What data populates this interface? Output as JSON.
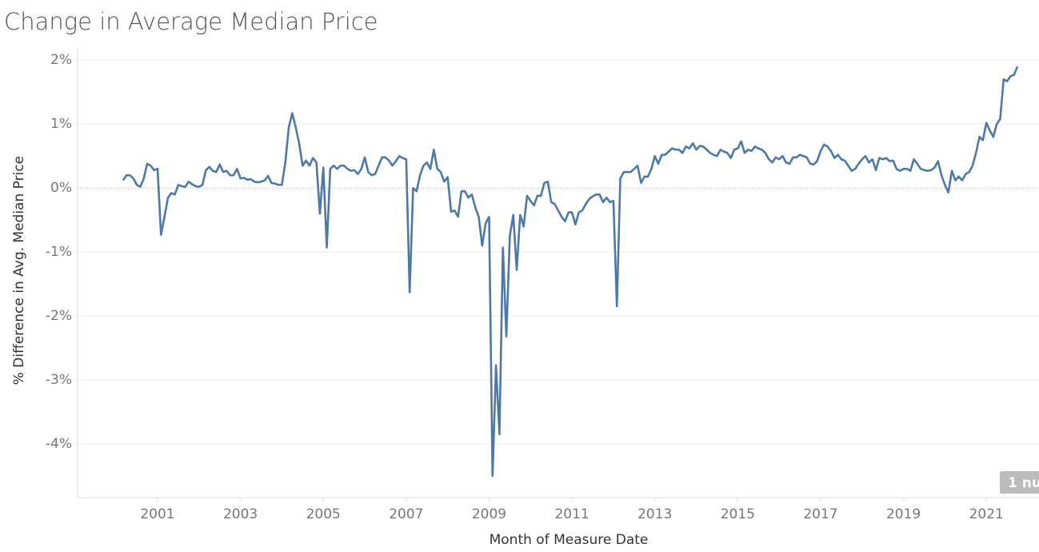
{
  "chart_data": {
    "type": "line",
    "title": "Change in Average Median Price",
    "x_label": "Month of Measure Date",
    "y_label": "% Difference in Avg. Median Price",
    "annotation": "1 nu",
    "xlim": [
      1999.07,
      2022.27
    ],
    "xticks": [
      2001,
      2003,
      2005,
      2007,
      2009,
      2011,
      2013,
      2015,
      2017,
      2019,
      2021
    ],
    "ylim": [
      -4.84,
      2.19
    ],
    "yticks": [
      {
        "value": -4,
        "label": "-4%"
      },
      {
        "value": -3,
        "label": "-3%"
      },
      {
        "value": -2,
        "label": "-2%"
      },
      {
        "value": -1,
        "label": "-1%"
      },
      {
        "value": 0,
        "label": "0%"
      },
      {
        "value": 1,
        "label": "1%"
      },
      {
        "value": 2,
        "label": "2%"
      }
    ],
    "grid": true,
    "x": [
      "2000-03",
      "2000-04",
      "2000-05",
      "2000-06",
      "2000-07",
      "2000-08",
      "2000-09",
      "2000-10",
      "2000-11",
      "2000-12",
      "2001-01",
      "2001-02",
      "2001-03",
      "2001-04",
      "2001-05",
      "2001-06",
      "2001-07",
      "2001-08",
      "2001-09",
      "2001-10",
      "2001-11",
      "2001-12",
      "2002-01",
      "2002-02",
      "2002-03",
      "2002-04",
      "2002-05",
      "2002-06",
      "2002-07",
      "2002-08",
      "2002-09",
      "2002-10",
      "2002-11",
      "2002-12",
      "2003-01",
      "2003-02",
      "2003-03",
      "2003-04",
      "2003-05",
      "2003-06",
      "2003-07",
      "2003-08",
      "2003-09",
      "2003-10",
      "2003-11",
      "2003-12",
      "2004-01",
      "2004-02",
      "2004-03",
      "2004-04",
      "2004-05",
      "2004-06",
      "2004-07",
      "2004-08",
      "2004-09",
      "2004-10",
      "2004-11",
      "2004-12",
      "2005-01",
      "2005-02",
      "2005-03",
      "2005-04",
      "2005-05",
      "2005-06",
      "2005-07",
      "2005-08",
      "2005-09",
      "2005-10",
      "2005-11",
      "2005-12",
      "2006-01",
      "2006-02",
      "2006-03",
      "2006-04",
      "2006-05",
      "2006-06",
      "2006-07",
      "2006-08",
      "2006-09",
      "2006-10",
      "2006-11",
      "2006-12",
      "2007-01",
      "2007-02",
      "2007-03",
      "2007-04",
      "2007-05",
      "2007-06",
      "2007-07",
      "2007-08",
      "2007-09",
      "2007-10",
      "2007-11",
      "2007-12",
      "2008-01",
      "2008-02",
      "2008-03",
      "2008-04",
      "2008-05",
      "2008-06",
      "2008-07",
      "2008-08",
      "2008-09",
      "2008-10",
      "2008-11",
      "2008-12",
      "2009-01",
      "2009-02",
      "2009-03",
      "2009-04",
      "2009-05",
      "2009-06",
      "2009-07",
      "2009-08",
      "2009-09",
      "2009-10",
      "2009-11",
      "2009-12",
      "2010-01",
      "2010-02",
      "2010-03",
      "2010-04",
      "2010-05",
      "2010-06",
      "2010-07",
      "2010-08",
      "2010-09",
      "2010-10",
      "2010-11",
      "2010-12",
      "2011-01",
      "2011-02",
      "2011-03",
      "2011-04",
      "2011-05",
      "2011-06",
      "2011-07",
      "2011-08",
      "2011-09",
      "2011-10",
      "2011-11",
      "2011-12",
      "2012-01",
      "2012-02",
      "2012-03",
      "2012-04",
      "2012-05",
      "2012-06",
      "2012-07",
      "2012-08",
      "2012-09",
      "2012-10",
      "2012-11",
      "2012-12",
      "2013-01",
      "2013-02",
      "2013-03",
      "2013-04",
      "2013-05",
      "2013-06",
      "2013-07",
      "2013-08",
      "2013-09",
      "2013-10",
      "2013-11",
      "2013-12",
      "2014-01",
      "2014-02",
      "2014-03",
      "2014-04",
      "2014-05",
      "2014-06",
      "2014-07",
      "2014-08",
      "2014-09",
      "2014-10",
      "2014-11",
      "2014-12",
      "2015-01",
      "2015-02",
      "2015-03",
      "2015-04",
      "2015-05",
      "2015-06",
      "2015-07",
      "2015-08",
      "2015-09",
      "2015-10",
      "2015-11",
      "2015-12",
      "2016-01",
      "2016-02",
      "2016-03",
      "2016-04",
      "2016-05",
      "2016-06",
      "2016-07",
      "2016-08",
      "2016-09",
      "2016-10",
      "2016-11",
      "2016-12",
      "2017-01",
      "2017-02",
      "2017-03",
      "2017-04",
      "2017-05",
      "2017-06",
      "2017-07",
      "2017-08",
      "2017-09",
      "2017-10",
      "2017-11",
      "2017-12",
      "2018-01",
      "2018-02",
      "2018-03",
      "2018-04",
      "2018-05",
      "2018-06",
      "2018-07",
      "2018-08",
      "2018-09",
      "2018-10",
      "2018-11",
      "2018-12",
      "2019-01",
      "2019-02",
      "2019-03",
      "2019-04",
      "2019-05",
      "2019-06",
      "2019-07",
      "2019-08",
      "2019-09",
      "2019-10",
      "2019-11",
      "2019-12",
      "2020-01",
      "2020-02",
      "2020-03",
      "2020-04",
      "2020-05",
      "2020-06",
      "2020-07",
      "2020-08",
      "2020-09",
      "2020-10",
      "2020-11",
      "2020-12",
      "2021-01",
      "2021-02",
      "2021-03",
      "2021-04",
      "2021-05",
      "2021-06",
      "2021-07",
      "2021-08",
      "2021-09",
      "2021-10"
    ],
    "series": [
      {
        "color": "#4e79a7",
        "values": [
          0.12,
          0.2,
          0.2,
          0.15,
          0.05,
          0.02,
          0.15,
          0.38,
          0.35,
          0.28,
          0.3,
          -0.73,
          -0.45,
          -0.15,
          -0.08,
          -0.1,
          0.05,
          0.03,
          0.02,
          0.1,
          0.06,
          0.03,
          0.02,
          0.05,
          0.28,
          0.33,
          0.27,
          0.25,
          0.37,
          0.25,
          0.27,
          0.2,
          0.2,
          0.3,
          0.15,
          0.16,
          0.13,
          0.14,
          0.1,
          0.09,
          0.1,
          0.12,
          0.19,
          0.08,
          0.07,
          0.05,
          0.05,
          0.4,
          0.95,
          1.17,
          0.95,
          0.7,
          0.35,
          0.43,
          0.35,
          0.47,
          0.4,
          -0.4,
          0.32,
          -0.93,
          0.3,
          0.35,
          0.3,
          0.35,
          0.35,
          0.3,
          0.27,
          0.28,
          0.22,
          0.3,
          0.48,
          0.25,
          0.2,
          0.22,
          0.35,
          0.48,
          0.48,
          0.43,
          0.35,
          0.42,
          0.5,
          0.47,
          0.45,
          -1.63,
          0.0,
          -0.05,
          0.2,
          0.35,
          0.4,
          0.3,
          0.6,
          0.3,
          0.25,
          0.1,
          0.17,
          -0.37,
          -0.35,
          -0.45,
          -0.05,
          -0.05,
          -0.15,
          -0.1,
          -0.3,
          -0.45,
          -0.9,
          -0.55,
          -0.45,
          -4.5,
          -2.77,
          -3.85,
          -0.93,
          -2.32,
          -0.75,
          -0.42,
          -1.28,
          -0.42,
          -0.6,
          -0.12,
          -0.2,
          -0.27,
          -0.12,
          -0.12,
          0.08,
          0.1,
          -0.22,
          -0.25,
          -0.35,
          -0.45,
          -0.52,
          -0.38,
          -0.38,
          -0.57,
          -0.38,
          -0.35,
          -0.25,
          -0.17,
          -0.13,
          -0.1,
          -0.1,
          -0.22,
          -0.15,
          -0.22,
          -0.2,
          -1.85,
          0.15,
          0.25,
          0.25,
          0.25,
          0.3,
          0.35,
          0.08,
          0.18,
          0.18,
          0.3,
          0.5,
          0.38,
          0.52,
          0.52,
          0.57,
          0.62,
          0.6,
          0.6,
          0.55,
          0.65,
          0.62,
          0.7,
          0.6,
          0.66,
          0.65,
          0.6,
          0.55,
          0.52,
          0.5,
          0.6,
          0.57,
          0.55,
          0.47,
          0.6,
          0.62,
          0.73,
          0.55,
          0.6,
          0.58,
          0.65,
          0.62,
          0.6,
          0.55,
          0.45,
          0.4,
          0.48,
          0.45,
          0.5,
          0.4,
          0.38,
          0.48,
          0.48,
          0.52,
          0.5,
          0.48,
          0.38,
          0.37,
          0.42,
          0.58,
          0.68,
          0.65,
          0.58,
          0.47,
          0.52,
          0.45,
          0.43,
          0.35,
          0.27,
          0.3,
          0.38,
          0.45,
          0.5,
          0.4,
          0.45,
          0.28,
          0.47,
          0.45,
          0.47,
          0.42,
          0.43,
          0.3,
          0.27,
          0.3,
          0.3,
          0.27,
          0.45,
          0.38,
          0.3,
          0.28,
          0.27,
          0.28,
          0.32,
          0.42,
          0.2,
          0.05,
          -0.07,
          0.27,
          0.12,
          0.18,
          0.12,
          0.22,
          0.25,
          0.35,
          0.55,
          0.8,
          0.75,
          1.02,
          0.9,
          0.8,
          1.0,
          1.08,
          1.7,
          1.67,
          1.75,
          1.77,
          1.9
        ]
      }
    ]
  }
}
